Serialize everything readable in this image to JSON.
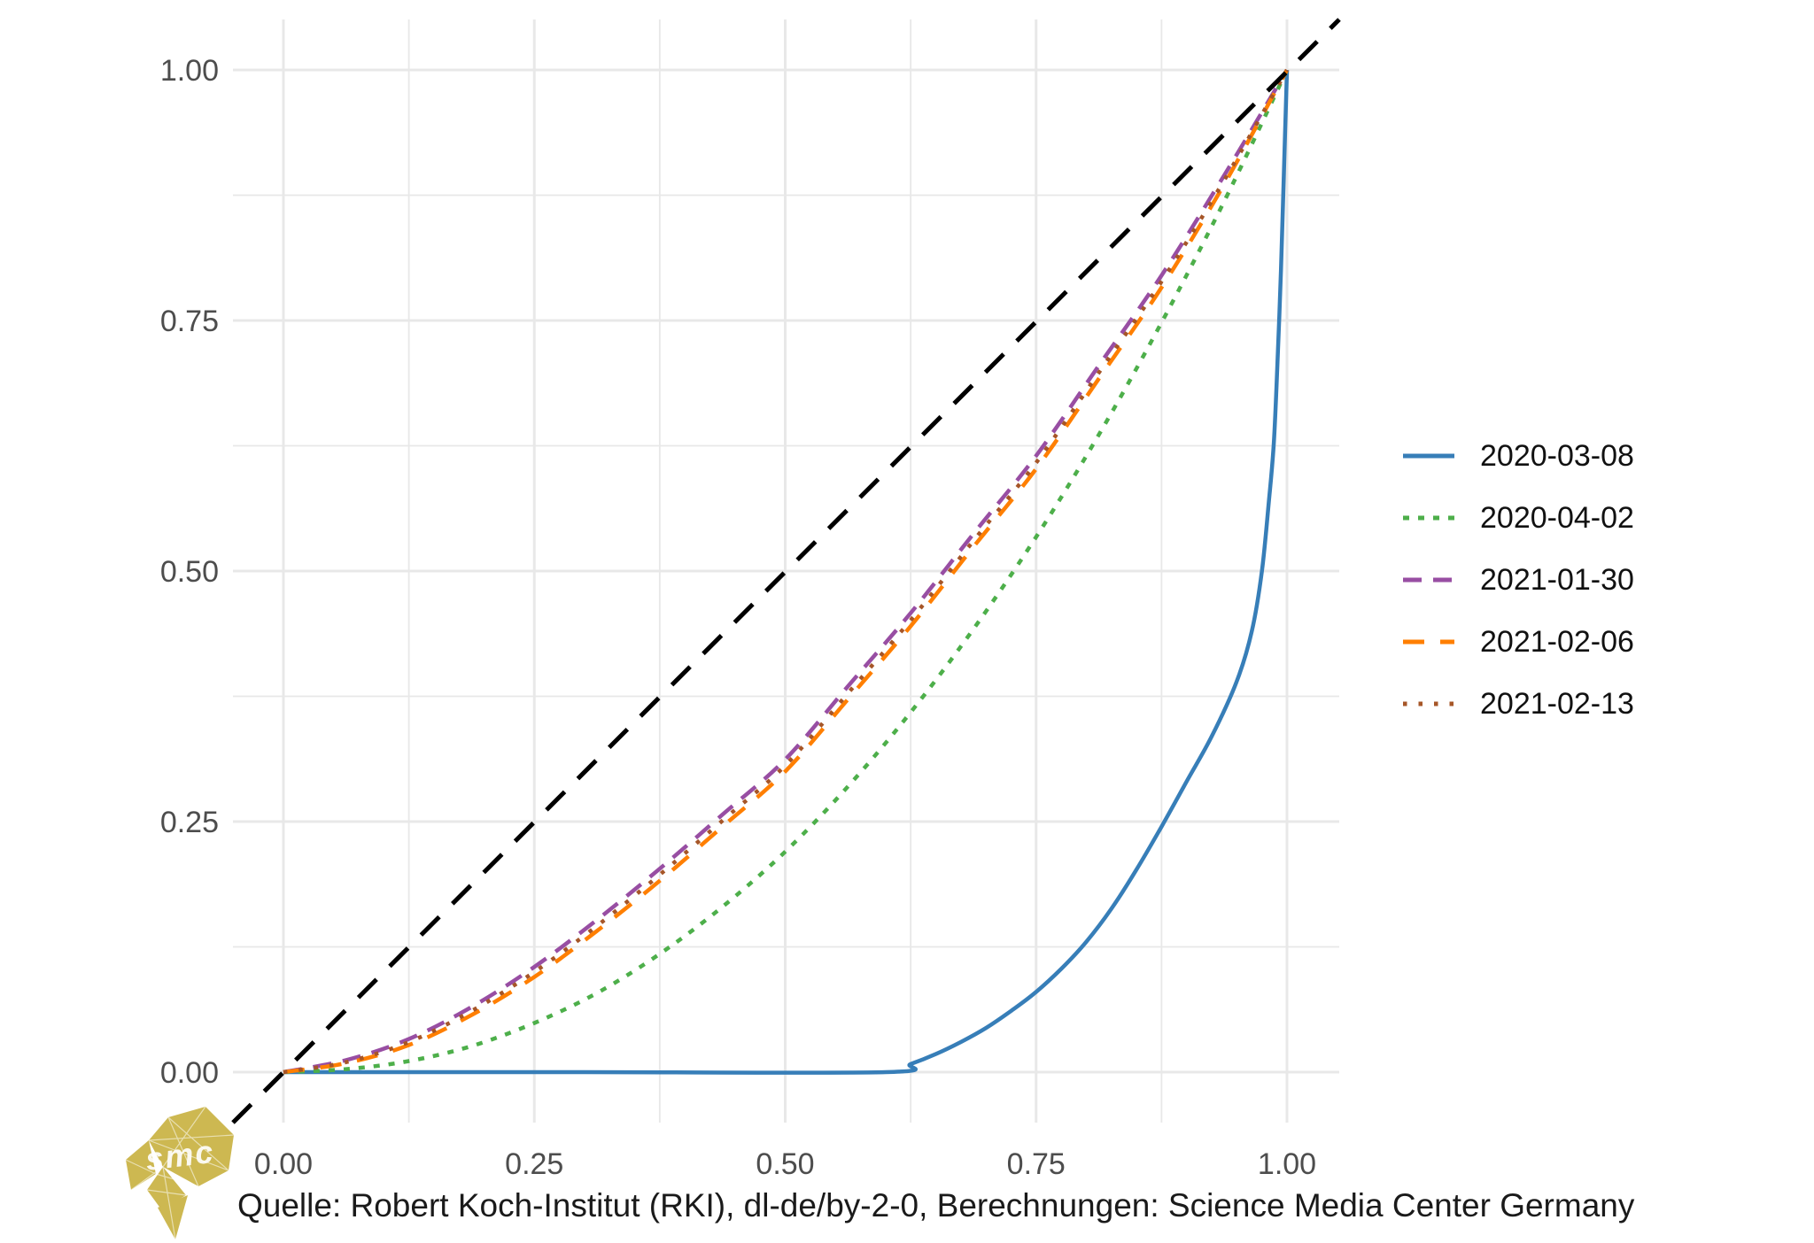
{
  "figure": {
    "caption": "Quelle: Robert Koch-Institut (RKI), dl-de/by-2-0, Berechnungen: Science Media Center Germany",
    "logo_text": "smc",
    "colors": {
      "background": "#ffffff",
      "grid": "#e8e8e8",
      "tick_label": "#4d4d4d",
      "text": "#111111",
      "reference_line": "#000000",
      "logo_gold": "#cdb851"
    }
  },
  "chart_data": {
    "type": "line",
    "title": "",
    "xlabel": "",
    "ylabel": "",
    "xlim": [
      -0.05,
      1.05
    ],
    "ylim": [
      -0.05,
      1.05
    ],
    "grid": true,
    "legend_position": "right",
    "x_tick_values": [
      0,
      0.25,
      0.5,
      0.75,
      1.0
    ],
    "x_tick_labels": [
      "0.00",
      "0.25",
      "0.50",
      "0.75",
      "1.00"
    ],
    "y_tick_values": [
      0,
      0.25,
      0.5,
      0.75,
      1.0
    ],
    "y_tick_labels": [
      "0.00",
      "0.25",
      "0.50",
      "0.75",
      "1.00"
    ],
    "minor_tick_values": [
      0.125,
      0.375,
      0.625,
      0.875
    ],
    "reference_line": {
      "name": "identity-diagonal",
      "style": "refdash",
      "color": "#000000",
      "x": [
        0,
        1
      ],
      "y": [
        0,
        1
      ]
    },
    "series": [
      {
        "name": "2020-03-08",
        "color": "#377eb8",
        "linetype": "solid",
        "x": [
          0,
          0.3,
          0.6,
          0.625,
          0.65,
          0.675,
          0.7,
          0.725,
          0.75,
          0.775,
          0.8,
          0.825,
          0.85,
          0.875,
          0.9,
          0.925,
          0.95,
          0.965,
          0.975,
          0.982,
          0.987,
          0.991,
          0.994,
          0.997,
          1.0
        ],
        "y": [
          0,
          0,
          0,
          0.008,
          0.018,
          0.03,
          0.044,
          0.061,
          0.08,
          0.103,
          0.13,
          0.163,
          0.202,
          0.245,
          0.29,
          0.335,
          0.39,
          0.44,
          0.5,
          0.57,
          0.63,
          0.72,
          0.8,
          0.9,
          1.0
        ]
      },
      {
        "name": "2020-04-02",
        "color": "#4daf4a",
        "linetype": "dotted",
        "x": [
          0,
          0.0625,
          0.125,
          0.1875,
          0.25,
          0.3125,
          0.375,
          0.4375,
          0.5,
          0.5625,
          0.625,
          0.6875,
          0.75,
          0.8125,
          0.875,
          0.9375,
          1.0
        ],
        "y": [
          0,
          0.003,
          0.011,
          0.026,
          0.049,
          0.079,
          0.118,
          0.165,
          0.22,
          0.285,
          0.359,
          0.442,
          0.534,
          0.636,
          0.748,
          0.869,
          1.0
        ]
      },
      {
        "name": "2021-01-30",
        "color": "#984ea3",
        "linetype": "dashed",
        "x": [
          0,
          0.0625,
          0.125,
          0.1875,
          0.25,
          0.3125,
          0.375,
          0.4375,
          0.5,
          0.5625,
          0.625,
          0.6875,
          0.75,
          0.8125,
          0.875,
          0.9375,
          1.0
        ],
        "y": [
          0,
          0.012,
          0.033,
          0.065,
          0.105,
          0.152,
          0.203,
          0.257,
          0.312,
          0.385,
          0.458,
          0.537,
          0.615,
          0.705,
          0.795,
          0.895,
          1.0
        ]
      },
      {
        "name": "2021-02-06",
        "color": "#ff7f00",
        "linetype": "longdash",
        "x": [
          0,
          0.0625,
          0.125,
          0.1875,
          0.25,
          0.3125,
          0.375,
          0.4375,
          0.5,
          0.5625,
          0.625,
          0.6875,
          0.75,
          0.8125,
          0.875,
          0.9375,
          1.0
        ],
        "y": [
          0,
          0.009,
          0.027,
          0.057,
          0.095,
          0.141,
          0.191,
          0.245,
          0.3,
          0.372,
          0.445,
          0.524,
          0.602,
          0.692,
          0.783,
          0.886,
          1.0
        ]
      },
      {
        "name": "2021-02-13",
        "color": "#a65628",
        "linetype": "dotfine",
        "x": [
          0,
          0.0625,
          0.125,
          0.1875,
          0.25,
          0.3125,
          0.375,
          0.4375,
          0.5,
          0.5625,
          0.625,
          0.6875,
          0.75,
          0.8125,
          0.875,
          0.9375,
          1.0
        ],
        "y": [
          0,
          0.01,
          0.03,
          0.061,
          0.1,
          0.146,
          0.197,
          0.251,
          0.306,
          0.378,
          0.451,
          0.53,
          0.608,
          0.698,
          0.789,
          0.89,
          1.0
        ]
      }
    ]
  }
}
